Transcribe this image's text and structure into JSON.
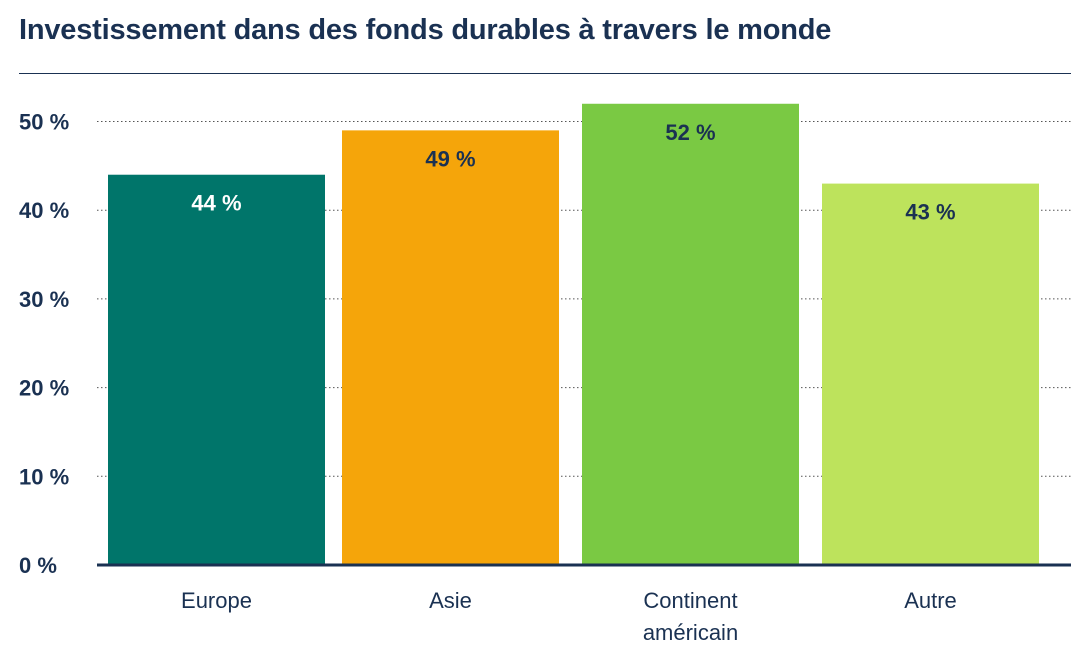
{
  "chart_data": {
    "type": "bar",
    "title": "Investissement dans des fonds durables à travers le monde",
    "categories": [
      [
        "Europe"
      ],
      [
        "Asie"
      ],
      [
        "Continent",
        "américain"
      ],
      [
        "Autre"
      ]
    ],
    "values": [
      44,
      49,
      52,
      43
    ],
    "value_labels": [
      "44 %",
      "49 %",
      "52 %",
      "43 %"
    ],
    "bar_colors": [
      "#00756a",
      "#f5a50a",
      "#7ac943",
      "#bde35c"
    ],
    "label_colors": [
      "#ffffff",
      "#1a3152",
      "#1a3152",
      "#1a3152"
    ],
    "yticks": [
      0,
      10,
      20,
      30,
      40,
      50
    ],
    "ytick_labels": [
      "0 %",
      "10 %",
      "20 %",
      "30 %",
      "40 %",
      "50 %"
    ],
    "ylim": [
      0,
      52
    ],
    "xlabel": "",
    "ylabel": "",
    "grid": true,
    "legend": "none"
  }
}
